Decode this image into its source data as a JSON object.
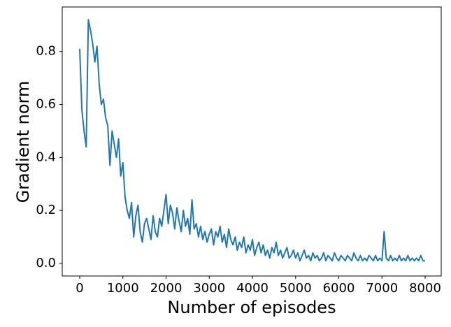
{
  "chart_data": {
    "type": "line",
    "xlabel": "Number of episodes",
    "ylabel": "Gradient norm",
    "color": "#1f77b4",
    "xlim": [
      -405,
      8372
    ],
    "ylim": [
      -0.0475,
      0.968
    ],
    "xticks": [
      0,
      1000,
      2000,
      3000,
      4000,
      5000,
      6000,
      7000,
      8000
    ],
    "yticks": [
      {
        "value": 0,
        "label": "0.0"
      },
      0.2,
      0.4,
      0.6,
      0.8
    ],
    "x": [
      0,
      50,
      100,
      150,
      200,
      250,
      300,
      350,
      400,
      450,
      500,
      550,
      600,
      650,
      700,
      750,
      800,
      850,
      900,
      950,
      1000,
      1050,
      1100,
      1150,
      1200,
      1250,
      1300,
      1350,
      1400,
      1450,
      1500,
      1550,
      1600,
      1650,
      1700,
      1750,
      1800,
      1850,
      1900,
      1950,
      2000,
      2050,
      2100,
      2150,
      2200,
      2250,
      2300,
      2350,
      2400,
      2450,
      2500,
      2550,
      2600,
      2650,
      2700,
      2750,
      2800,
      2850,
      2900,
      2950,
      3000,
      3050,
      3100,
      3150,
      3200,
      3250,
      3300,
      3350,
      3400,
      3450,
      3500,
      3550,
      3600,
      3650,
      3700,
      3750,
      3800,
      3850,
      3900,
      3950,
      4000,
      4050,
      4100,
      4150,
      4200,
      4250,
      4300,
      4350,
      4400,
      4450,
      4500,
      4550,
      4600,
      4650,
      4700,
      4750,
      4800,
      4850,
      4900,
      4950,
      5000,
      5050,
      5100,
      5150,
      5200,
      5250,
      5300,
      5350,
      5400,
      5450,
      5500,
      5550,
      5600,
      5650,
      5700,
      5750,
      5800,
      5850,
      5900,
      5950,
      6000,
      6050,
      6100,
      6150,
      6200,
      6250,
      6300,
      6350,
      6400,
      6450,
      6500,
      6550,
      6600,
      6650,
      6700,
      6750,
      6800,
      6850,
      6900,
      6950,
      7000,
      7050,
      7100,
      7150,
      7200,
      7250,
      7300,
      7350,
      7400,
      7450,
      7500,
      7550,
      7600,
      7650,
      7700,
      7750,
      7800,
      7850,
      7900,
      7950,
      8000
    ],
    "values": [
      0.81,
      0.58,
      0.5,
      0.44,
      0.92,
      0.88,
      0.83,
      0.76,
      0.82,
      0.68,
      0.6,
      0.62,
      0.55,
      0.52,
      0.37,
      0.5,
      0.45,
      0.4,
      0.47,
      0.33,
      0.38,
      0.25,
      0.2,
      0.17,
      0.23,
      0.1,
      0.18,
      0.22,
      0.12,
      0.08,
      0.15,
      0.17,
      0.13,
      0.09,
      0.18,
      0.12,
      0.1,
      0.17,
      0.14,
      0.2,
      0.26,
      0.15,
      0.22,
      0.19,
      0.13,
      0.21,
      0.16,
      0.12,
      0.2,
      0.14,
      0.17,
      0.11,
      0.24,
      0.13,
      0.15,
      0.1,
      0.14,
      0.09,
      0.12,
      0.08,
      0.11,
      0.13,
      0.07,
      0.12,
      0.1,
      0.14,
      0.08,
      0.11,
      0.06,
      0.13,
      0.09,
      0.07,
      0.1,
      0.05,
      0.08,
      0.06,
      0.1,
      0.04,
      0.07,
      0.05,
      0.09,
      0.03,
      0.06,
      0.08,
      0.04,
      0.07,
      0.03,
      0.05,
      0.02,
      0.06,
      0.04,
      0.08,
      0.03,
      0.05,
      0.02,
      0.04,
      0.06,
      0.02,
      0.03,
      0.05,
      0.02,
      0.04,
      0.01,
      0.03,
      0.05,
      0.02,
      0.03,
      0.01,
      0.04,
      0.02,
      0.03,
      0.01,
      0.02,
      0.04,
      0.01,
      0.03,
      0.02,
      0.01,
      0.04,
      0.02,
      0.01,
      0.03,
      0.02,
      0.01,
      0.03,
      0.02,
      0.01,
      0.04,
      0.02,
      0.01,
      0.03,
      0.01,
      0.02,
      0.01,
      0.03,
      0.02,
      0.01,
      0.03,
      0.01,
      0.02,
      0.01,
      0.12,
      0.02,
      0.01,
      0.03,
      0.01,
      0.02,
      0.01,
      0.03,
      0.01,
      0.02,
      0.01,
      0.03,
      0.01,
      0.02,
      0.01,
      0.02,
      0.01,
      0.03,
      0.01,
      0.01
    ]
  }
}
